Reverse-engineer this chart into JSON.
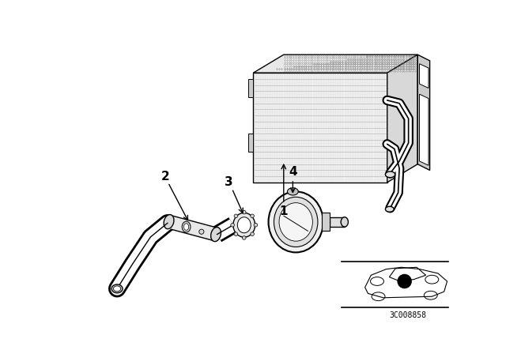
{
  "bg_color": "#ffffff",
  "line_color": "#000000",
  "part_number": "3C008858",
  "fig_width": 6.4,
  "fig_height": 4.48,
  "dpi": 100
}
